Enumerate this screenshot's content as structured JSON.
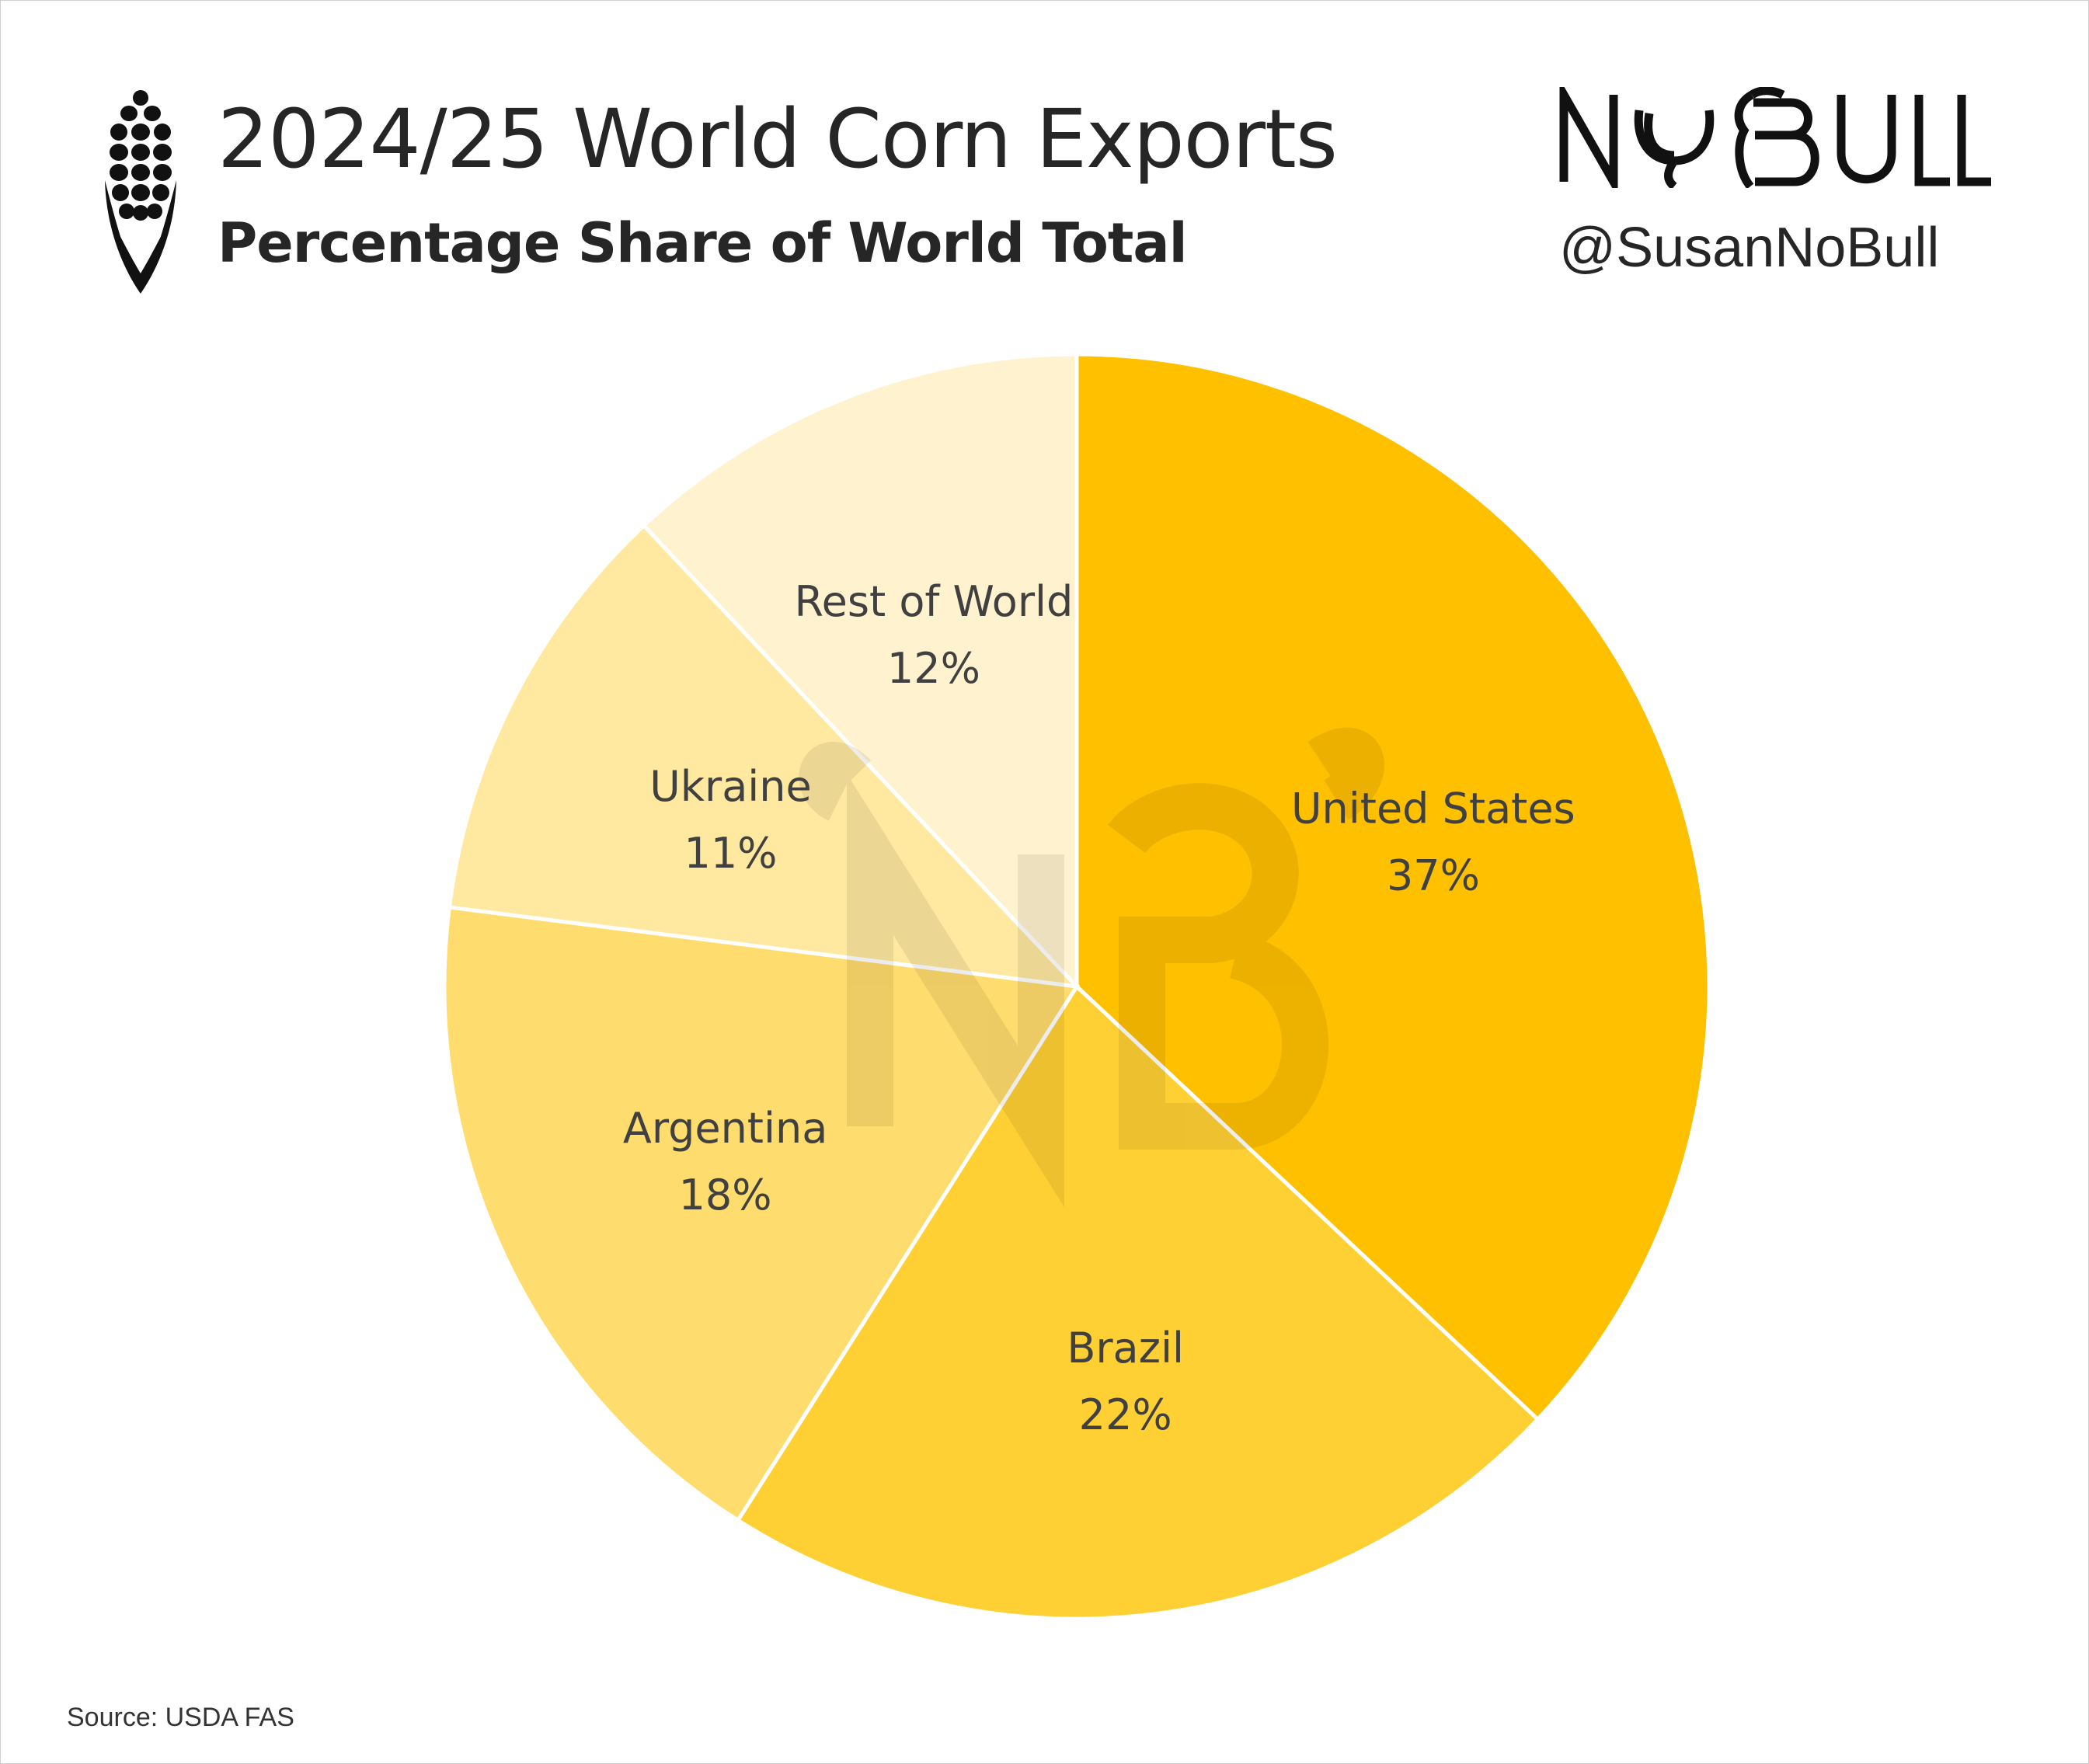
{
  "header": {
    "title": "2024/25 World Corn Exports",
    "subtitle": "Percentage Share of World Total",
    "logo_text": "NO BULL",
    "handle": "@SusanNoBull"
  },
  "footer": {
    "source": "Source: USDA FAS"
  },
  "icons": [
    "corn-icon",
    "no-bull-logo",
    "nb-watermark"
  ],
  "chart_data": {
    "type": "pie",
    "title": "2024/25 World Corn Exports",
    "subtitle": "Percentage Share of World Total",
    "start": "12 o'clock, clockwise",
    "slices": [
      {
        "name": "United States",
        "value": 37,
        "label": "37%",
        "color": "#FFC000"
      },
      {
        "name": "Brazil",
        "value": 22,
        "label": "22%",
        "color": "#FFD033"
      },
      {
        "name": "Argentina",
        "value": 18,
        "label": "18%",
        "color": "#FFDC6E"
      },
      {
        "name": "Ukraine",
        "value": 11,
        "label": "11%",
        "color": "#FFE8A0"
      },
      {
        "name": "Rest of World",
        "value": 12,
        "label": "12%",
        "color": "#FFF2CF"
      }
    ]
  }
}
